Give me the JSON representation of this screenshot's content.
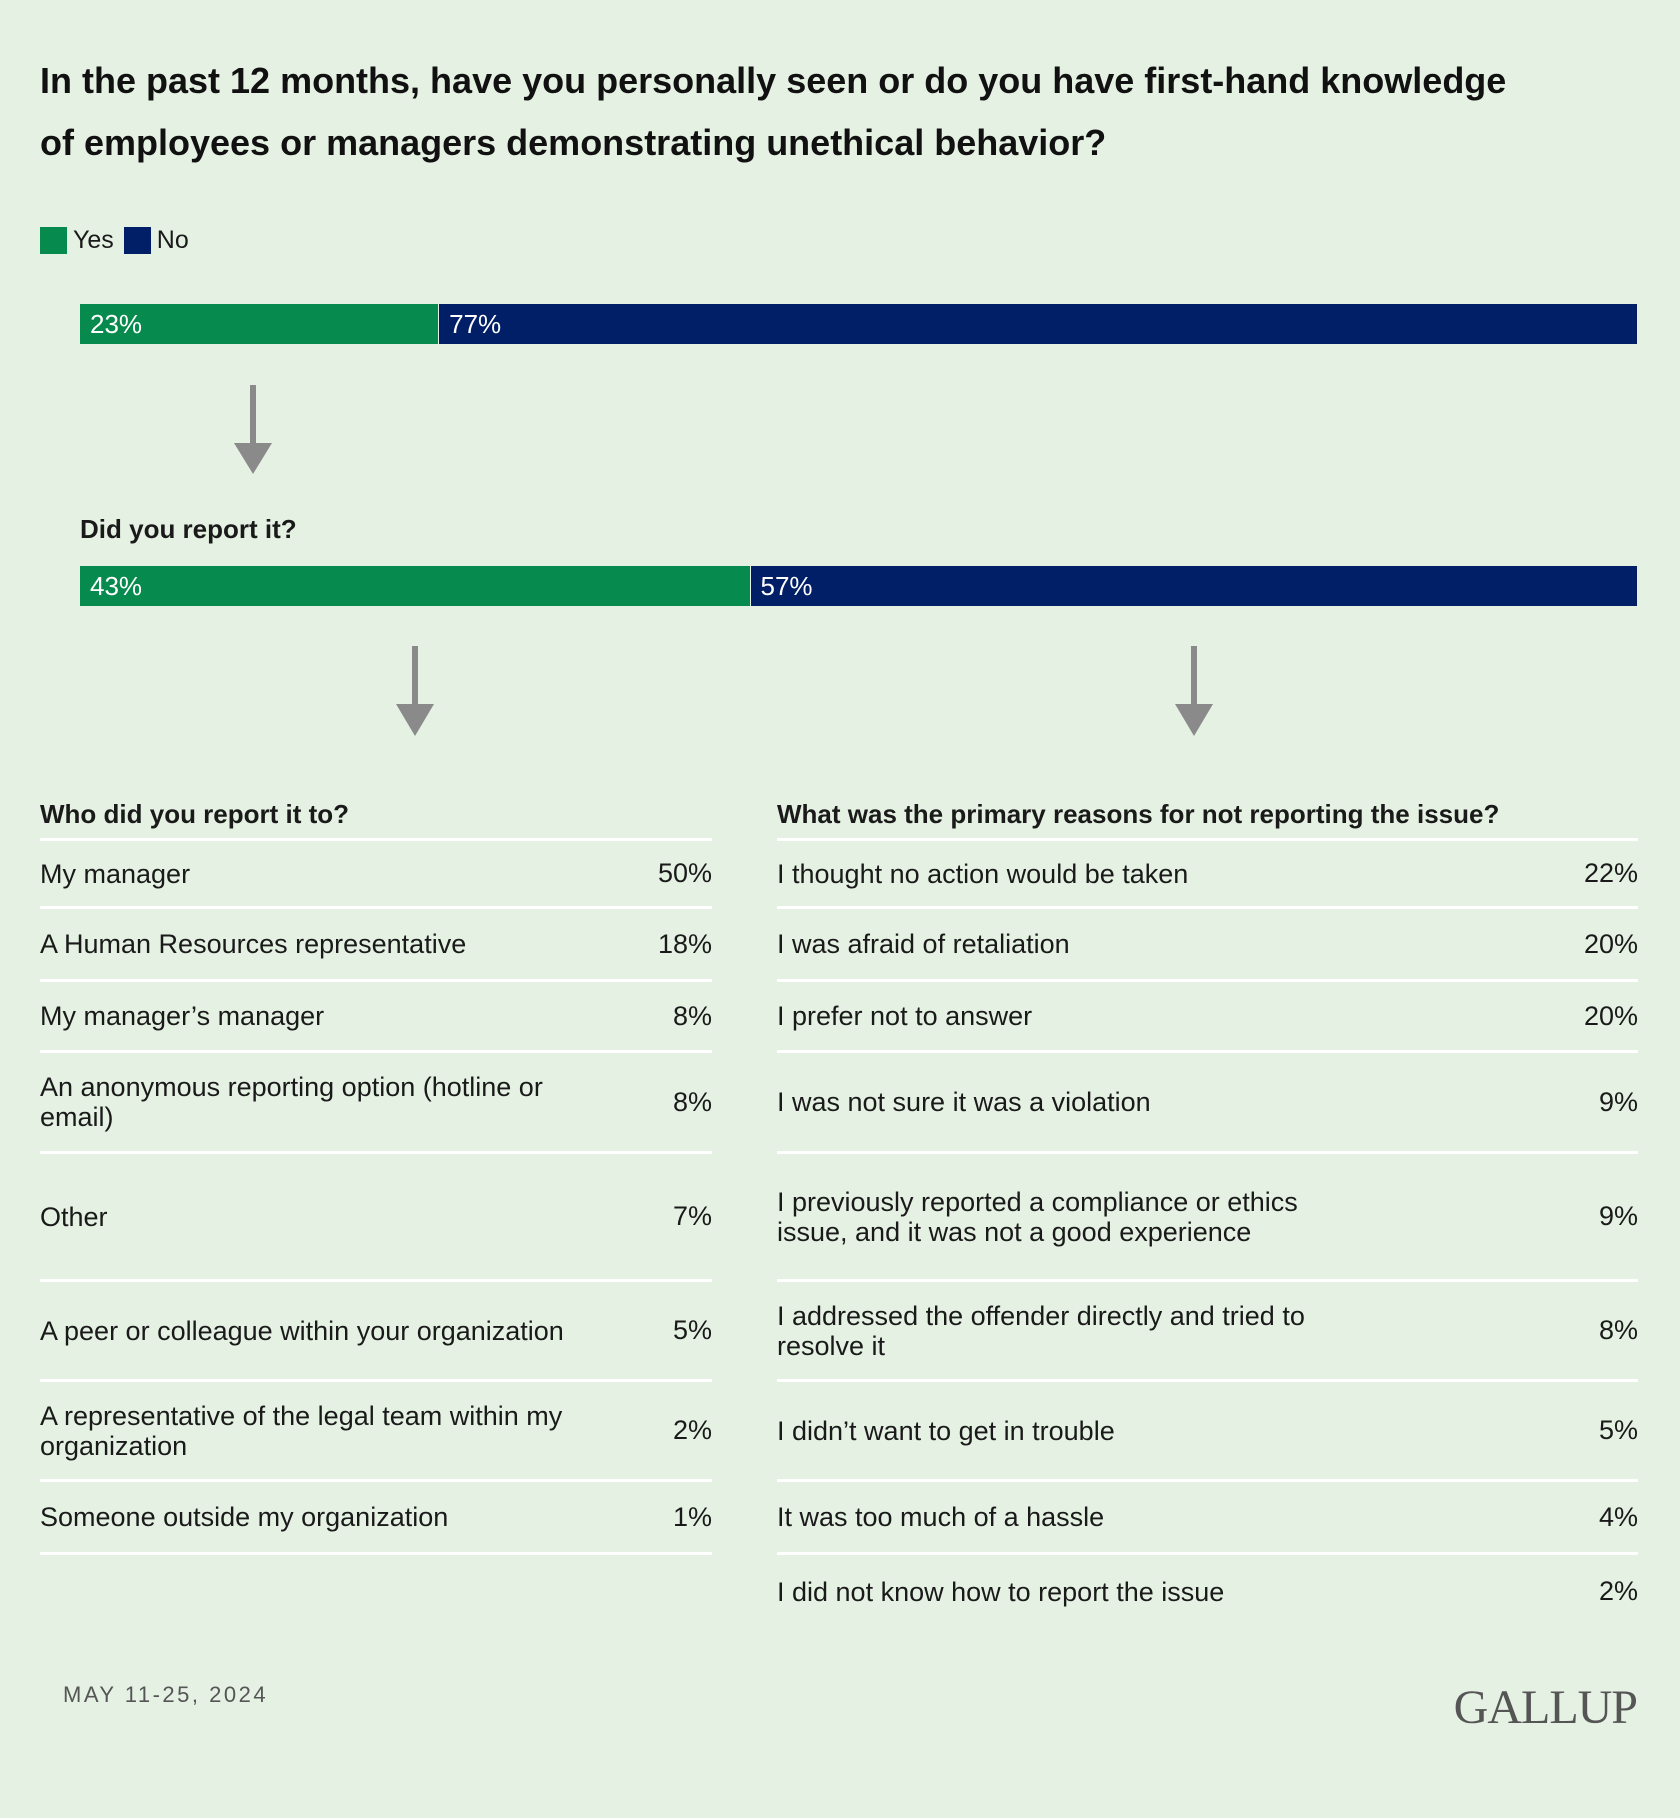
{
  "title": "In the past 12 months, have you personally seen or do you have first-hand knowledge of employees or managers demonstrating unethical behavior?",
  "chart_data": [
    {
      "type": "stacked_bar",
      "series": [
        {
          "name": "Yes",
          "color": "#078a4d",
          "values": [
            23
          ],
          "value_labels": [
            "23%"
          ]
        },
        {
          "name": "No",
          "color": "#001f66",
          "values": [
            77
          ],
          "value_labels": [
            "77%"
          ]
        }
      ]
    },
    {
      "type": "stacked_bar",
      "title": "Did you report it?",
      "series": [
        {
          "color": "#078a4d",
          "values": [
            43
          ],
          "value_labels": [
            "43%"
          ]
        },
        {
          "color": "#001f66",
          "values": [
            57
          ],
          "value_labels": [
            "57%"
          ]
        }
      ]
    }
  ],
  "tables": [
    {
      "title": "Who did you report it to?",
      "rows": [
        [
          "My manager",
          "50%"
        ],
        [
          "A Human Resources representative",
          "18%"
        ],
        [
          "My manager’s manager",
          "8%"
        ],
        [
          "An anonymous reporting option (hotline or email)",
          "8%"
        ],
        [
          "Other",
          "7%"
        ],
        [
          "A peer or colleague within your organization",
          "5%"
        ],
        [
          "A representative of the legal team within my organization",
          "2%"
        ],
        [
          "Someone outside my organization",
          "1%"
        ]
      ]
    },
    {
      "title": "What was the primary reasons for not reporting the issue?",
      "rows": [
        [
          "I thought no action would be taken",
          "22%"
        ],
        [
          "I was afraid of retaliation",
          "20%"
        ],
        [
          "I prefer not to answer",
          "20%"
        ],
        [
          "I was not sure it was a violation",
          "9%"
        ],
        [
          "I previously reported a compliance or ethics issue, and it was not a good experience",
          "9%"
        ],
        [
          "I addressed the offender directly and tried to resolve it",
          "8%"
        ],
        [
          "I didn’t want to get in trouble",
          "5%"
        ],
        [
          "It was too much of a hassle",
          "4%"
        ],
        [
          "I did not know how to report the issue",
          "2%"
        ]
      ]
    }
  ],
  "footer": {
    "date": "MAY 11-25, 2024",
    "logo": "GALLUP"
  }
}
